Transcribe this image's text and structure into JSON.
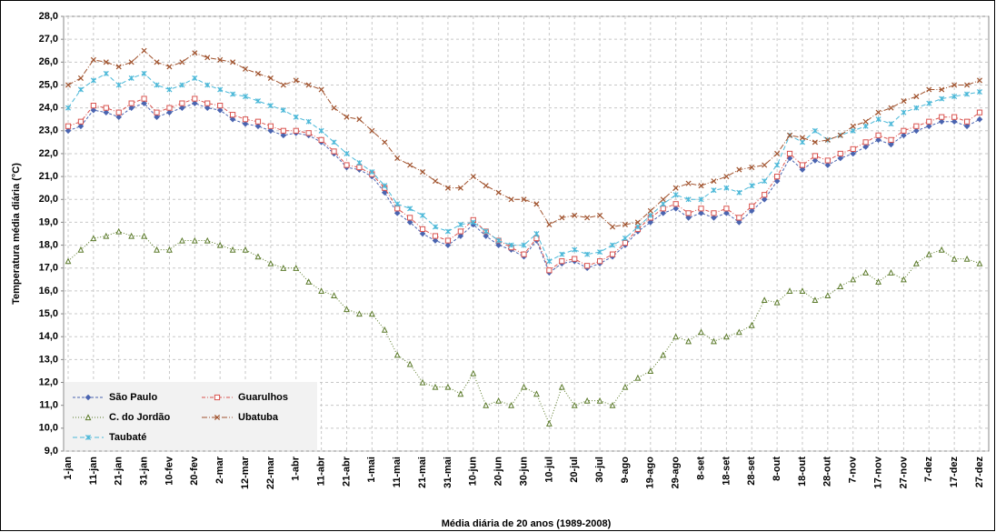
{
  "chart_data": {
    "type": "line",
    "y_label": "Temperatura média diária (°C)",
    "x_label": "Média diária de 20 anos (1989-2008)",
    "categories": [
      "1-jan",
      null,
      "11-jan",
      null,
      "21-jan",
      null,
      "31-jan",
      null,
      "10-fev",
      null,
      "20-fev",
      null,
      "2-mar",
      null,
      "12-mar",
      null,
      "22-mar",
      null,
      "1-abr",
      null,
      "11-abr",
      null,
      "21-abr",
      null,
      "1-mai",
      null,
      "11-mai",
      null,
      "21-mai",
      null,
      "31-mai",
      null,
      "10-jun",
      null,
      "20-jun",
      null,
      "30-jun",
      null,
      "10-jul",
      null,
      "20-jul",
      null,
      "30-jul",
      null,
      "9-ago",
      null,
      "19-ago",
      null,
      "29-ago",
      null,
      "8-set",
      null,
      "18-set",
      null,
      "28-set",
      null,
      "8-out",
      null,
      "18-out",
      null,
      "28-out",
      null,
      "7-nov",
      null,
      "17-nov",
      null,
      "27-nov",
      null,
      "7-dez",
      null,
      "17-dez",
      null,
      "27-dez"
    ],
    "series": [
      {
        "name": "São Paulo",
        "color": "#4a64b0",
        "marker": "diamond",
        "dash": "3,2",
        "values": [
          23.0,
          23.2,
          23.9,
          23.8,
          23.6,
          24.0,
          24.2,
          23.6,
          23.8,
          24.0,
          24.2,
          24.0,
          23.9,
          23.5,
          23.3,
          23.2,
          23.0,
          22.8,
          22.9,
          22.8,
          22.5,
          22.0,
          21.4,
          21.3,
          21.0,
          20.3,
          19.4,
          19.0,
          18.5,
          18.2,
          18.0,
          18.4,
          18.9,
          18.4,
          18.0,
          17.8,
          17.5,
          18.2,
          16.8,
          17.2,
          17.3,
          17.0,
          17.2,
          17.5,
          18.0,
          18.6,
          19.0,
          19.4,
          19.6,
          19.2,
          19.4,
          19.2,
          19.4,
          19.0,
          19.5,
          20.0,
          20.8,
          21.8,
          21.3,
          21.7,
          21.5,
          21.8,
          22.0,
          22.3,
          22.6,
          22.4,
          22.8,
          23.0,
          23.2,
          23.4,
          23.4,
          23.2,
          23.5
        ]
      },
      {
        "name": "Guarulhos",
        "color": "#d9534f",
        "marker": "square",
        "dash": "4,2,1,2",
        "values": [
          23.2,
          23.4,
          24.1,
          24.0,
          23.8,
          24.2,
          24.4,
          23.8,
          24.0,
          24.2,
          24.4,
          24.2,
          24.1,
          23.7,
          23.5,
          23.4,
          23.2,
          23.0,
          23.0,
          22.9,
          22.6,
          22.1,
          21.5,
          21.4,
          21.1,
          20.5,
          19.6,
          19.2,
          18.7,
          18.4,
          18.2,
          18.6,
          19.1,
          18.6,
          18.2,
          17.9,
          17.6,
          18.3,
          16.9,
          17.3,
          17.4,
          17.1,
          17.3,
          17.6,
          18.1,
          18.7,
          19.2,
          19.6,
          19.8,
          19.4,
          19.6,
          19.4,
          19.6,
          19.2,
          19.7,
          20.2,
          21.0,
          22.0,
          21.5,
          21.9,
          21.7,
          22.0,
          22.2,
          22.5,
          22.8,
          22.6,
          23.0,
          23.2,
          23.4,
          23.6,
          23.6,
          23.4,
          23.8
        ]
      },
      {
        "name": "C. do Jordão",
        "color": "#5b7a2a",
        "marker": "triangle",
        "dash": "1,2",
        "values": [
          17.3,
          17.8,
          18.3,
          18.4,
          18.6,
          18.4,
          18.4,
          17.8,
          17.8,
          18.2,
          18.2,
          18.2,
          18.0,
          17.8,
          17.8,
          17.5,
          17.2,
          17.0,
          17.0,
          16.4,
          16.0,
          15.8,
          15.2,
          15.0,
          15.0,
          14.3,
          13.2,
          12.8,
          12.0,
          11.8,
          11.8,
          11.5,
          12.4,
          11.0,
          11.2,
          11.0,
          11.8,
          11.5,
          10.2,
          11.8,
          11.0,
          11.2,
          11.2,
          11.0,
          11.8,
          12.2,
          12.5,
          13.2,
          14.0,
          13.8,
          14.2,
          13.8,
          14.0,
          14.2,
          14.5,
          15.6,
          15.5,
          16.0,
          16.0,
          15.6,
          15.8,
          16.2,
          16.5,
          16.8,
          16.4,
          16.8,
          16.5,
          17.2,
          17.6,
          17.8,
          17.4,
          17.4,
          17.2
        ]
      },
      {
        "name": "Ubatuba",
        "color": "#a0522d",
        "marker": "x",
        "dash": "6,2,1,2",
        "values": [
          25.0,
          25.3,
          26.1,
          26.0,
          25.8,
          26.0,
          26.5,
          26.0,
          25.8,
          26.0,
          26.4,
          26.2,
          26.1,
          26.0,
          25.7,
          25.5,
          25.3,
          25.0,
          25.2,
          25.0,
          24.8,
          24.0,
          23.6,
          23.5,
          23.0,
          22.5,
          21.8,
          21.5,
          21.2,
          20.8,
          20.5,
          20.5,
          21.0,
          20.6,
          20.3,
          20.0,
          20.0,
          19.8,
          18.9,
          19.2,
          19.3,
          19.2,
          19.3,
          18.8,
          18.9,
          19.0,
          19.5,
          20.0,
          20.5,
          20.7,
          20.6,
          20.8,
          21.0,
          21.3,
          21.4,
          21.5,
          22.0,
          22.8,
          22.7,
          22.5,
          22.6,
          22.8,
          23.2,
          23.4,
          23.8,
          24.0,
          24.3,
          24.5,
          24.8,
          24.8,
          25.0,
          25.0,
          25.2
        ]
      },
      {
        "name": "Taubaté",
        "color": "#4bb8d8",
        "marker": "star",
        "dash": "5,3",
        "values": [
          24.0,
          24.8,
          25.2,
          25.5,
          25.0,
          25.3,
          25.5,
          25.0,
          24.8,
          25.0,
          25.3,
          25.0,
          24.8,
          24.6,
          24.5,
          24.3,
          24.1,
          23.9,
          23.6,
          23.4,
          23.0,
          22.5,
          22.0,
          21.6,
          21.2,
          20.6,
          19.8,
          19.6,
          19.3,
          18.8,
          18.6,
          18.9,
          19.0,
          18.6,
          18.2,
          18.0,
          18.0,
          18.5,
          17.3,
          17.6,
          17.8,
          17.6,
          17.7,
          18.0,
          18.3,
          18.8,
          19.3,
          19.8,
          20.2,
          20.0,
          20.0,
          20.4,
          20.5,
          20.3,
          20.6,
          20.8,
          21.5,
          22.8,
          22.5,
          23.0,
          22.6,
          22.8,
          23.0,
          23.2,
          23.5,
          23.3,
          23.8,
          24.0,
          24.2,
          24.4,
          24.5,
          24.6,
          24.7
        ]
      }
    ],
    "ylim": [
      9,
      28
    ],
    "yticks": [
      {
        "value": 9,
        "label": "9,0"
      },
      {
        "value": 10,
        "label": "10,0"
      },
      {
        "value": 11,
        "label": "11,0"
      },
      {
        "value": 12,
        "label": "12,0"
      },
      {
        "value": 13,
        "label": "13,0"
      },
      {
        "value": 14,
        "label": "14,0"
      },
      {
        "value": 15,
        "label": "15,0"
      },
      {
        "value": 16,
        "label": "16,0"
      },
      {
        "value": 17,
        "label": "17,0"
      },
      {
        "value": 18,
        "label": "18,0"
      },
      {
        "value": 19,
        "label": "19,0"
      },
      {
        "value": 20,
        "label": "20,0"
      },
      {
        "value": 21,
        "label": "21,0"
      },
      {
        "value": 22,
        "label": "22,0"
      },
      {
        "value": 23,
        "label": "23,0"
      },
      {
        "value": 24,
        "label": "24,0"
      },
      {
        "value": 25,
        "label": "25,0"
      },
      {
        "value": 26,
        "label": "26,0"
      },
      {
        "value": 27,
        "label": "27,0"
      },
      {
        "value": 28,
        "label": "28,0"
      }
    ],
    "grid": true,
    "legend": "lower left"
  }
}
